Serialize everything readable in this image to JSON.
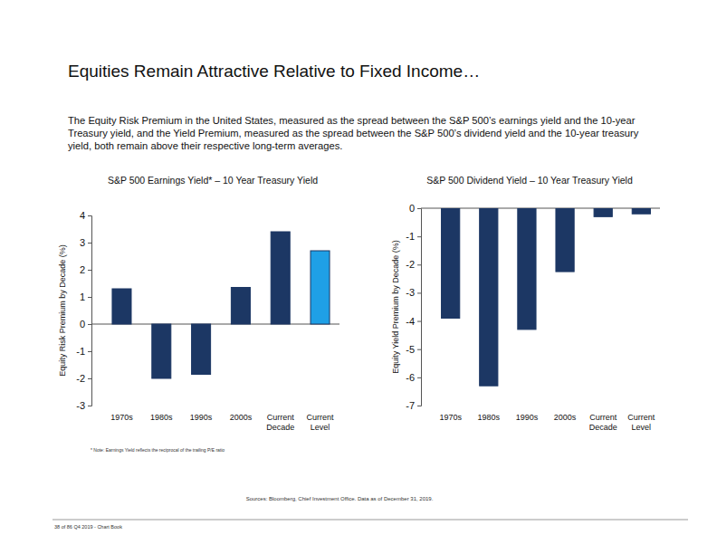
{
  "page": {
    "title": "Equities Remain Attractive Relative to Fixed Income…",
    "description": "The Equity Risk Premium in the United States, measured as the spread between the S&P 500’s earnings yield and the 10-year Treasury yield, and the Yield Premium, measured as the spread between the S&P 500’s dividend yield and the 10-year treasury yield, both remain above their respective long-term averages.",
    "note": "* Note: Earnings Yield reflects the reciprocal of the trailing P/E ratio",
    "sources": "Sources: Bloomberg, Chief Investment Office. Data as of December 31, 2019.",
    "footer": "38 of 86 Q4 2019 - Chart Book"
  },
  "chart_data": [
    {
      "type": "bar",
      "title": "S&P 500 Earnings Yield* – 10 Year Treasury Yield",
      "y_label": "Equity Risk Premium by Decade (%)",
      "categories": [
        "1970s",
        "1980s",
        "1990s",
        "2000s",
        "Current Decade",
        "Current Level"
      ],
      "values": [
        1.3,
        -2.0,
        -1.85,
        1.35,
        3.4,
        2.7
      ],
      "colors": [
        "#1c3764",
        "#1c3764",
        "#1c3764",
        "#1c3764",
        "#1c3764",
        "#1fa0e6"
      ],
      "ylim": [
        -3,
        4
      ],
      "yticks": [
        -3,
        -2,
        -1,
        0,
        1,
        2,
        3,
        4
      ],
      "grid": false
    },
    {
      "type": "bar",
      "title": "S&P 500 Dividend Yield – 10 Year Treasury Yield",
      "y_label": "Equity Yield Premium by Decade (%)",
      "categories": [
        "1970s",
        "1980s",
        "1990s",
        "2000s",
        "Current Decade",
        "Current Level"
      ],
      "values": [
        -3.9,
        -6.3,
        -4.3,
        -2.25,
        -0.3,
        -0.2
      ],
      "color": "#1c3764",
      "ylim": [
        -7,
        0
      ],
      "yticks": [
        -7,
        -6,
        -5,
        -4,
        -3,
        -2,
        -1,
        0
      ],
      "grid": false
    }
  ]
}
